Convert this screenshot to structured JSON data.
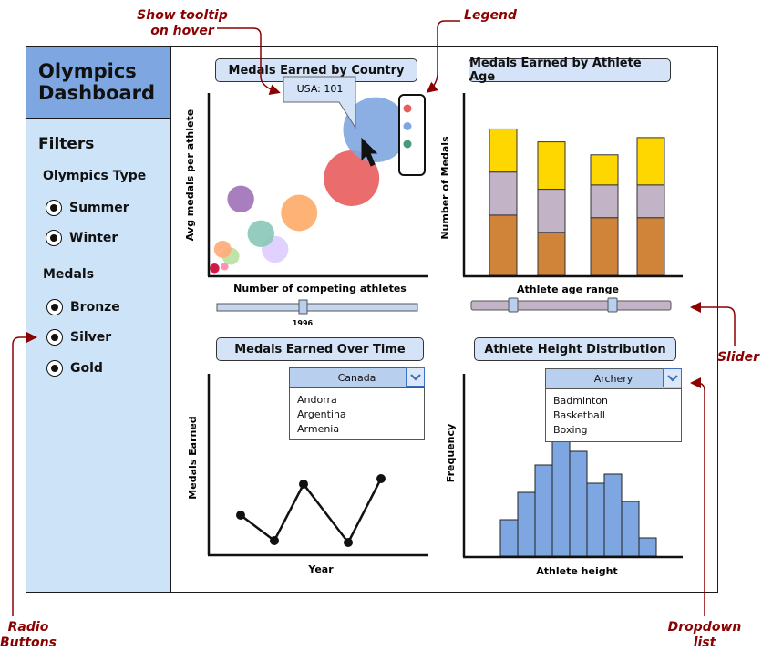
{
  "sidebar": {
    "title_line1": "Olympics",
    "title_line2": "Dashboard",
    "filters_label": "Filters",
    "olympics_type_label": "Olympics Type",
    "olympics_types": [
      "Summer",
      "Winter"
    ],
    "medals_label": "Medals",
    "medals": [
      "Bronze",
      "Silver",
      "Gold"
    ]
  },
  "charts": {
    "country": {
      "title": "Medals Earned by Country",
      "xlabel": "Number of competing athletes",
      "ylabel": "Avg medals per athlete",
      "tooltip": "USA: 101",
      "slider_value": "1996"
    },
    "age": {
      "title": "Medals Earned by Athlete Age",
      "xlabel": "Athlete age range",
      "ylabel": "Number of Medals"
    },
    "time": {
      "title": "Medals Earned Over Time",
      "xlabel": "Year",
      "ylabel": "Medals Earned",
      "dropdown_selected": "Canada",
      "dropdown_options": [
        "Andorra",
        "Argentina",
        "Armenia"
      ]
    },
    "height": {
      "title": "Athlete Height Distribution",
      "xlabel": "Athlete height",
      "ylabel": "Frequency",
      "dropdown_selected": "Archery",
      "dropdown_options": [
        "Badminton",
        "Basketball",
        "Boxing"
      ]
    }
  },
  "annotations": {
    "tooltip_line1": "Show tooltip",
    "tooltip_line2": "on hover",
    "legend": "Legend",
    "slider": "Slider",
    "radio_line1": "Radio",
    "radio_line2": "Buttons",
    "dropdown_line1": "Dropdown",
    "dropdown_line2": "list"
  },
  "colors": {
    "gold": "#ffd700",
    "silver": "#c2b3c7",
    "bronze": "#d0843a",
    "bar_blue": "#7ea6e0",
    "annotation": "#8b0000"
  },
  "chart_data": [
    {
      "type": "scatter",
      "title": "Medals Earned by Country",
      "xlabel": "Number of competing athletes",
      "ylabel": "Avg medals per athlete",
      "points": [
        {
          "x": 0.02,
          "y": 0.03,
          "r": 0.05,
          "color": "#cc0033"
        },
        {
          "x": 0.07,
          "y": 0.04,
          "r": 0.04,
          "color": "#ff88aa"
        },
        {
          "x": 0.1,
          "y": 0.1,
          "r": 0.09,
          "color": "#b8e0a0"
        },
        {
          "x": 0.06,
          "y": 0.14,
          "r": 0.09,
          "color": "#ffaa77"
        },
        {
          "x": 0.32,
          "y": 0.14,
          "r": 0.14,
          "color": "#ddccff"
        },
        {
          "x": 0.25,
          "y": 0.23,
          "r": 0.14,
          "color": "#88c8b8"
        },
        {
          "x": 0.15,
          "y": 0.43,
          "r": 0.14,
          "color": "#a070b8"
        },
        {
          "x": 0.44,
          "y": 0.35,
          "r": 0.19,
          "color": "#ffaa66"
        },
        {
          "x": 0.7,
          "y": 0.55,
          "r": 0.29,
          "color": "#e85c5c"
        },
        {
          "x": 0.82,
          "y": 0.83,
          "r": 0.34,
          "color": "#7ea6e0"
        }
      ],
      "legend_colors": [
        "#e85c5c",
        "#7ea6e0",
        "#4a9a7a"
      ],
      "legend_position": "top-right"
    },
    {
      "type": "bar",
      "stacked": true,
      "title": "Medals Earned by Athlete Age",
      "xlabel": "Athlete age range",
      "ylabel": "Number of Medals",
      "categories": [
        "",
        "",
        "",
        ""
      ],
      "series": [
        {
          "color": "#d0843a",
          "values": [
            70,
            50,
            67,
            67
          ]
        },
        {
          "color": "#c2b3c7",
          "values": [
            50,
            50,
            38,
            38
          ]
        },
        {
          "color": "#ffd700",
          "values": [
            50,
            55,
            35,
            55
          ]
        }
      ],
      "ylim": [
        0,
        180
      ]
    },
    {
      "type": "line",
      "title": "Medals Earned Over Time",
      "xlabel": "Year",
      "ylabel": "Medals Earned",
      "x": [
        1,
        2,
        3,
        4,
        5
      ],
      "y": [
        22,
        8,
        39,
        7,
        42
      ],
      "ylim": [
        0,
        100
      ]
    },
    {
      "type": "bar",
      "title": "Athlete Height Distribution",
      "xlabel": "Athlete height",
      "ylabel": "Frequency",
      "values": [
        40,
        70,
        100,
        128,
        115,
        80,
        90,
        60,
        20
      ],
      "ylim": [
        0,
        130
      ]
    }
  ]
}
